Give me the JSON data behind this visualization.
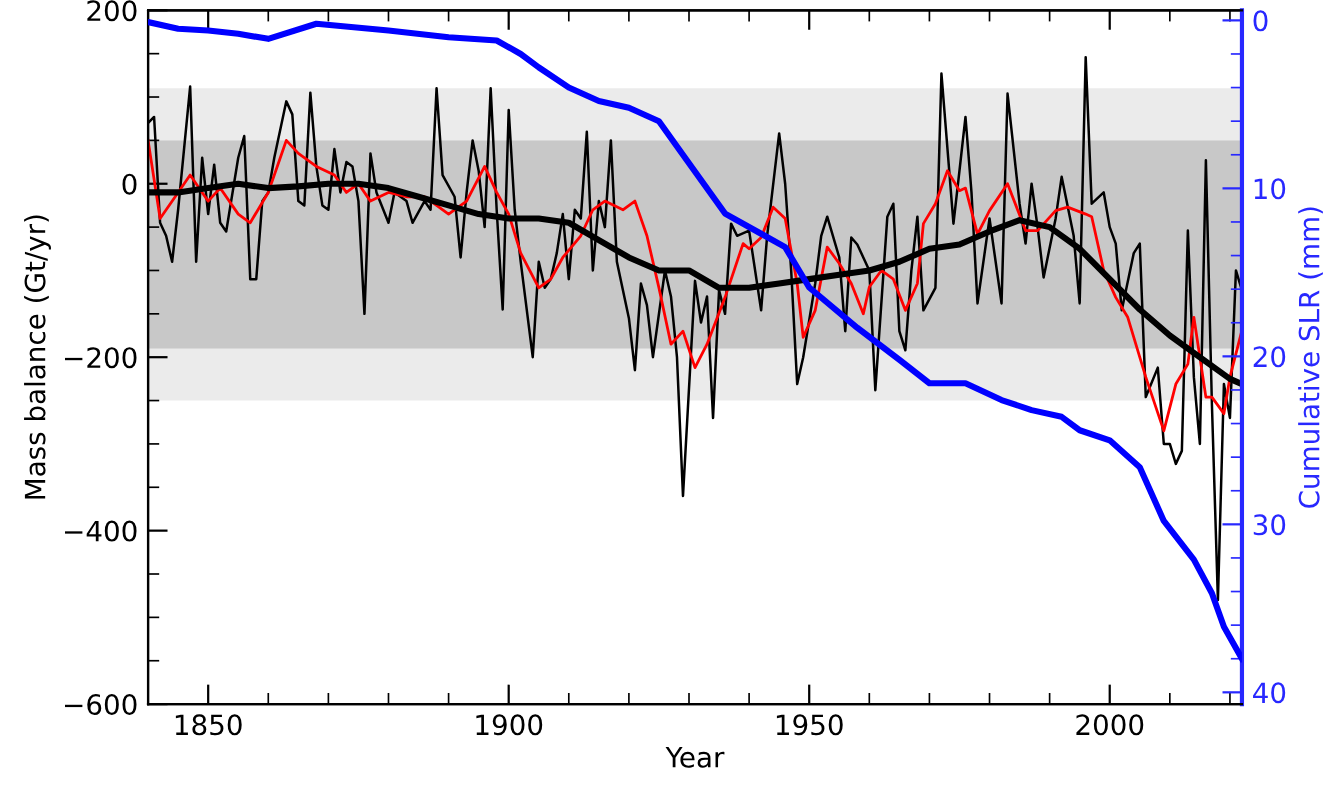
{
  "chart_data": {
    "type": "line",
    "xlabel": "Year",
    "ylabel": "Mass balance (Gt/yr)",
    "y2label": "Cumulative SLR (mm)",
    "xlim": [
      1840,
      2022
    ],
    "xticks": [
      1850,
      1900,
      1950,
      2000
    ],
    "ylim": [
      -600,
      200
    ],
    "yticks": [
      -600,
      -400,
      -200,
      0,
      200
    ],
    "y2lim": [
      40.7,
      -0.6
    ],
    "y2ticks": [
      0,
      10,
      20,
      30,
      40
    ],
    "grid": false,
    "legend": false,
    "line_style": "solid",
    "marker": "none",
    "bands": [
      {
        "axis": "y",
        "from": -250,
        "to": 110,
        "color": "#ebebeb"
      },
      {
        "axis": "y",
        "from": -190,
        "to": 50,
        "color": "#c8c8c8"
      }
    ],
    "series": [
      {
        "color": "#000000",
        "x": [
          1840,
          1841,
          1842,
          1843,
          1844,
          1845,
          1847,
          1848,
          1849,
          1850,
          1851,
          1852,
          1853,
          1855,
          1856,
          1857,
          1858,
          1859,
          1860,
          1861,
          1863,
          1864,
          1865,
          1866,
          1867,
          1868,
          1869,
          1870,
          1871,
          1872,
          1873,
          1874,
          1875,
          1876,
          1877,
          1878,
          1880,
          1881,
          1883,
          1884,
          1886,
          1887,
          1888,
          1889,
          1891,
          1892,
          1893,
          1894,
          1895,
          1896,
          1897,
          1898,
          1899,
          1900,
          1901,
          1902,
          1904,
          1905,
          1906,
          1907,
          1908,
          1909,
          1910,
          1911,
          1912,
          1913,
          1914,
          1915,
          1916,
          1917,
          1918,
          1920,
          1921,
          1922,
          1923,
          1924,
          1926,
          1927,
          1928,
          1929,
          1931,
          1932,
          1933,
          1934,
          1935,
          1936,
          1937,
          1938,
          1940,
          1942,
          1943,
          1945,
          1946,
          1947,
          1948,
          1949,
          1951,
          1952,
          1953,
          1955,
          1956,
          1957,
          1958,
          1960,
          1961,
          1963,
          1964,
          1965,
          1966,
          1967,
          1968,
          1969,
          1971,
          1972,
          1974,
          1975,
          1976,
          1977,
          1978,
          1980,
          1982,
          1983,
          1985,
          1986,
          1987,
          1988,
          1989,
          1991,
          1992,
          1994,
          1995,
          1996,
          1997,
          1999,
          2000,
          2001,
          2002,
          2004,
          2005,
          2006,
          2008,
          2009,
          2010,
          2011,
          2012,
          2013,
          2014,
          2015,
          2016,
          2017,
          2018,
          2019,
          2020,
          2021,
          2022
        ],
        "values": [
          70,
          77,
          -45,
          -60,
          -90,
          -30,
          112,
          -90,
          30,
          -35,
          22,
          -45,
          -55,
          30,
          55,
          -110,
          -110,
          -20,
          -10,
          30,
          95,
          80,
          -20,
          -25,
          105,
          20,
          -25,
          -30,
          40,
          -10,
          25,
          20,
          -20,
          -150,
          35,
          -10,
          -45,
          -10,
          -20,
          -45,
          -20,
          -30,
          110,
          10,
          -15,
          -85,
          -10,
          50,
          15,
          -50,
          110,
          -30,
          -145,
          85,
          -30,
          -90,
          -200,
          -90,
          -120,
          -110,
          -80,
          -35,
          -110,
          -30,
          -40,
          60,
          -100,
          -20,
          -50,
          50,
          -90,
          -155,
          -215,
          -115,
          -140,
          -200,
          -100,
          -130,
          -200,
          -360,
          -112,
          -160,
          -130,
          -270,
          -123,
          -150,
          -46,
          -60,
          -54,
          -146,
          -60,
          58,
          0,
          -100,
          -231,
          -200,
          -115,
          -60,
          -38,
          -85,
          -170,
          -62,
          -70,
          -100,
          -238,
          -38,
          -23,
          -170,
          -192,
          -100,
          -38,
          -146,
          -120,
          127,
          -46,
          15,
          77,
          -10,
          -138,
          -40,
          -138,
          104,
          -23,
          -69,
          0,
          -50,
          -108,
          -40,
          8,
          -60,
          -138,
          146,
          -23,
          -10,
          -50,
          -69,
          -146,
          -80,
          -69,
          -246,
          -212,
          -300,
          -300,
          -323,
          -308,
          -54,
          -223,
          -300,
          27,
          -254,
          -480,
          -231,
          -270,
          -100,
          -123
        ]
      },
      {
        "color": "#ff0000",
        "x": [
          1840,
          1842,
          1845,
          1847,
          1849,
          1850,
          1852,
          1855,
          1857,
          1860,
          1862,
          1863,
          1865,
          1868,
          1871,
          1873,
          1875,
          1877,
          1880,
          1883,
          1886,
          1888,
          1890,
          1893,
          1896,
          1898,
          1900,
          1902,
          1905,
          1907,
          1909,
          1912,
          1914,
          1916,
          1919,
          1921,
          1923,
          1925,
          1927,
          1929,
          1931,
          1933,
          1936,
          1939,
          1940,
          1942,
          1944,
          1946,
          1948,
          1949,
          1951,
          1953,
          1955,
          1957,
          1959,
          1960,
          1962,
          1964,
          1966,
          1968,
          1969,
          1971,
          1973,
          1975,
          1976,
          1978,
          1980,
          1983,
          1986,
          1988,
          1991,
          1993,
          1996,
          1997,
          1999,
          2001,
          2003,
          2006,
          2009,
          2011,
          2013,
          2014,
          2016,
          2017,
          2019,
          2020,
          2022
        ],
        "values": [
          50,
          -40,
          -10,
          10,
          -10,
          -20,
          -5,
          -35,
          -45,
          -10,
          30,
          50,
          35,
          20,
          10,
          -10,
          0,
          -20,
          -10,
          -15,
          -15,
          -25,
          -35,
          -20,
          20,
          -10,
          -35,
          -80,
          -120,
          -110,
          -85,
          -60,
          -30,
          -20,
          -30,
          -20,
          -60,
          -120,
          -185,
          -170,
          -212,
          -185,
          -131,
          -69,
          -75,
          -62,
          -27,
          -40,
          -115,
          -177,
          -146,
          -73,
          -92,
          -115,
          -150,
          -119,
          -100,
          -110,
          -146,
          -115,
          -46,
          -23,
          15,
          -8,
          -5,
          -58,
          -31,
          0,
          -54,
          -54,
          -31,
          -27,
          -35,
          -38,
          -100,
          -131,
          -154,
          -223,
          -285,
          -231,
          -208,
          -154,
          -246,
          -246,
          -265,
          -223,
          -169
        ]
      },
      {
        "color": "#000000",
        "x": [
          1840,
          1845,
          1850,
          1855,
          1860,
          1865,
          1870,
          1875,
          1880,
          1885,
          1890,
          1895,
          1900,
          1905,
          1910,
          1915,
          1920,
          1925,
          1930,
          1935,
          1940,
          1945,
          1950,
          1955,
          1960,
          1965,
          1970,
          1975,
          1980,
          1985,
          1990,
          1995,
          2000,
          2005,
          2010,
          2015,
          2020,
          2022
        ],
        "values": [
          -10,
          -10,
          -5,
          0,
          -5,
          -3,
          0,
          0,
          -5,
          -15,
          -25,
          -35,
          -40,
          -40,
          -45,
          -65,
          -85,
          -100,
          -100,
          -120,
          -120,
          -115,
          -110,
          -105,
          -100,
          -90,
          -75,
          -70,
          -55,
          -42,
          -50,
          -75,
          -110,
          -145,
          -175,
          -200,
          -225,
          -231
        ]
      },
      {
        "color": "#0000ff",
        "axis": "y2",
        "x": [
          1840,
          1845,
          1850,
          1855,
          1860,
          1868,
          1880,
          1890,
          1898,
          1902,
          1905,
          1910,
          1915,
          1920,
          1925,
          1930,
          1936,
          1942,
          1946,
          1950,
          1958,
          1965,
          1970,
          1976,
          1982,
          1987,
          1992,
          1995,
          2000,
          2005,
          2009,
          2014,
          2017,
          2019,
          2022
        ],
        "values": [
          0.1,
          0.5,
          0.6,
          0.8,
          1.1,
          0.2,
          0.6,
          1.0,
          1.2,
          2.0,
          2.8,
          4.0,
          4.8,
          5.2,
          6.0,
          8.5,
          11.5,
          12.7,
          13.5,
          15.9,
          18.3,
          20.2,
          21.6,
          21.6,
          22.6,
          23.2,
          23.6,
          24.4,
          25.0,
          26.6,
          29.8,
          32.1,
          34.1,
          36.1,
          38.0
        ]
      }
    ]
  }
}
